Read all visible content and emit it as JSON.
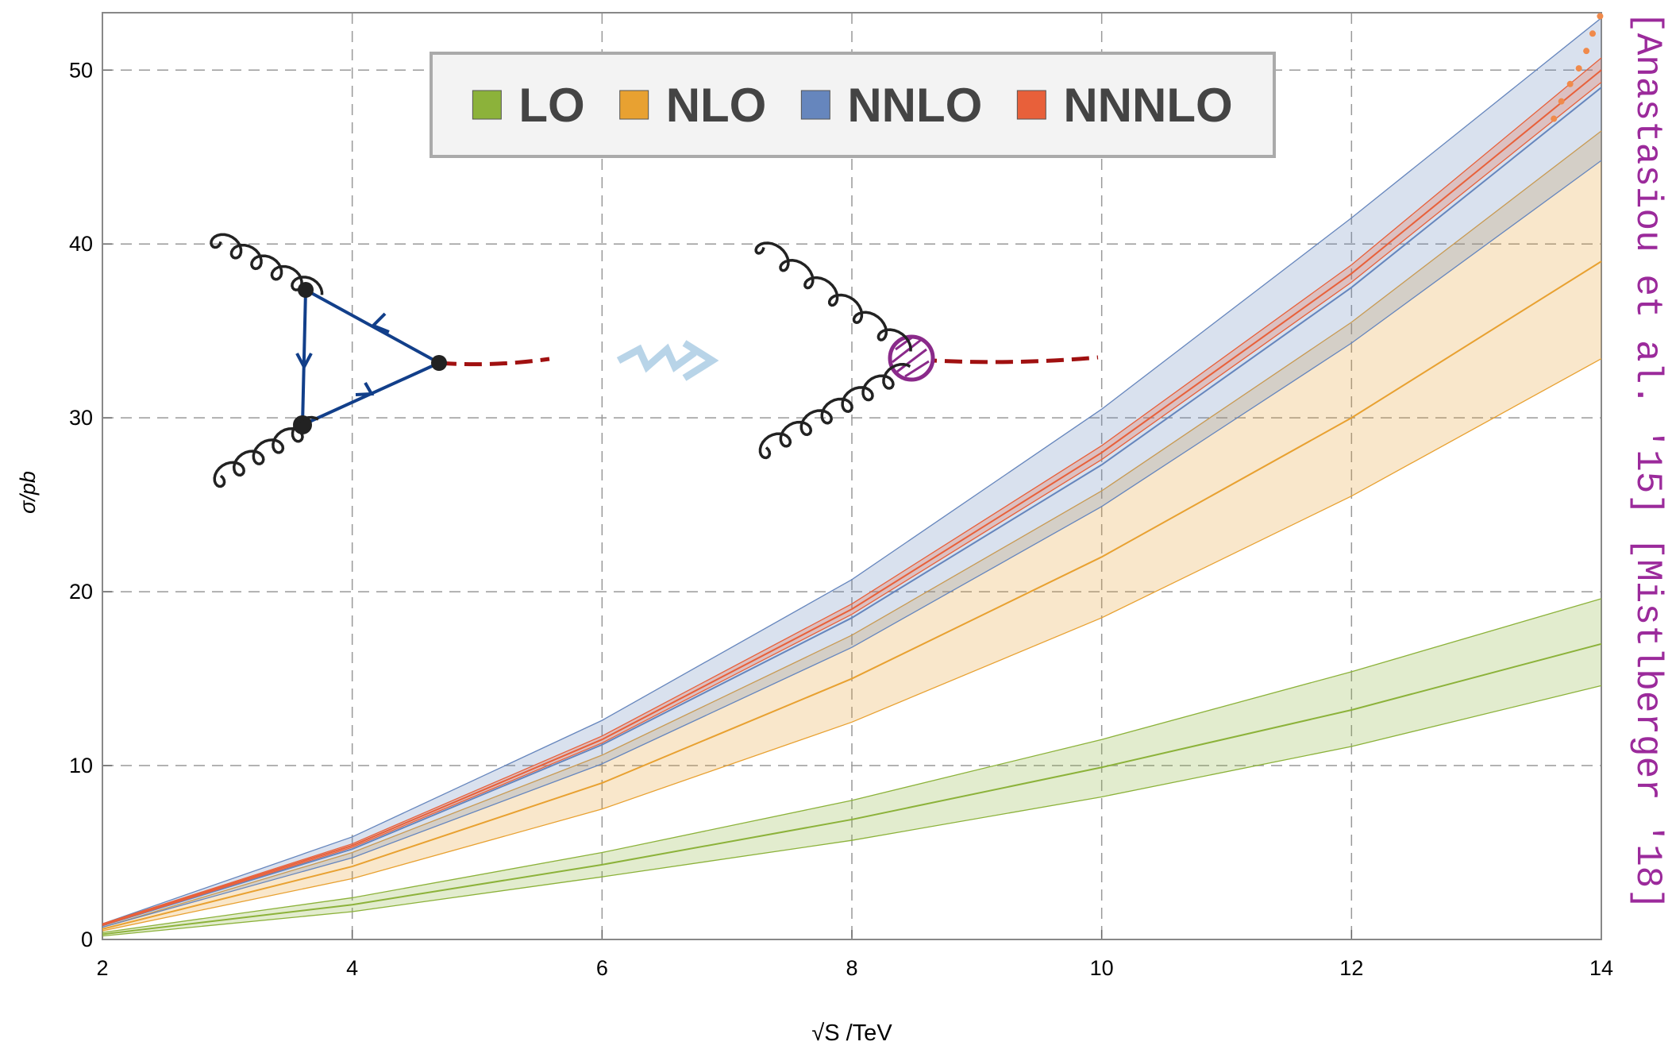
{
  "chart_data": {
    "type": "line",
    "y_label": "σ/pb",
    "x_label": "√S /TeV",
    "side_note": "[Anastasiou et al. '15] [Mistlberger '18]",
    "x": [
      2,
      4,
      6,
      8,
      10,
      12,
      14
    ],
    "xlim": [
      2,
      14
    ],
    "ylim": [
      0,
      53.3
    ],
    "xticks": [
      2,
      4,
      6,
      8,
      10,
      12,
      14
    ],
    "yticks": [
      0,
      10,
      20,
      30,
      40,
      50
    ],
    "grid": true,
    "legend": "top",
    "series": [
      {
        "name": "LO",
        "color": "#8cb23a",
        "values": [
          0.3,
          2.0,
          4.3,
          6.9,
          9.9,
          13.2,
          17.0
        ],
        "lower": [
          0.2,
          1.6,
          3.6,
          5.7,
          8.2,
          11.1,
          14.6
        ],
        "upper": [
          0.4,
          2.4,
          5.0,
          8.0,
          11.5,
          15.4,
          19.6
        ]
      },
      {
        "name": "NLO",
        "color": "#e8a131",
        "values": [
          0.6,
          4.2,
          9.0,
          15.0,
          22.0,
          30.0,
          39.0
        ],
        "lower": [
          0.5,
          3.5,
          7.5,
          12.5,
          18.5,
          25.5,
          33.4
        ],
        "upper": [
          0.7,
          5.0,
          10.6,
          17.5,
          25.8,
          35.5,
          46.5
        ]
      },
      {
        "name": "NNLO",
        "color": "#6686bd",
        "values": [
          0.8,
          5.2,
          11.2,
          18.5,
          27.3,
          37.5,
          49.0
        ],
        "lower": [
          0.7,
          4.7,
          10.1,
          16.8,
          24.9,
          34.3,
          44.8
        ],
        "upper": [
          0.9,
          5.9,
          12.6,
          20.7,
          30.5,
          41.5,
          53.0
        ]
      },
      {
        "name": "NNNLO",
        "color": "#e8603a",
        "values": [
          0.85,
          5.4,
          11.5,
          19.0,
          28.0,
          38.3,
          50.0
        ],
        "lower": [
          0.8,
          5.3,
          11.3,
          18.7,
          27.6,
          37.8,
          49.3
        ],
        "upper": [
          0.9,
          5.5,
          11.7,
          19.3,
          28.4,
          38.8,
          50.7
        ]
      }
    ],
    "points": {
      "color": "#f08a4b",
      "x": [
        13.62,
        13.68,
        13.75,
        13.82,
        13.88,
        13.93,
        13.99
      ],
      "y": [
        47.2,
        48.2,
        49.2,
        50.1,
        51.1,
        52.1,
        53.1
      ]
    }
  }
}
